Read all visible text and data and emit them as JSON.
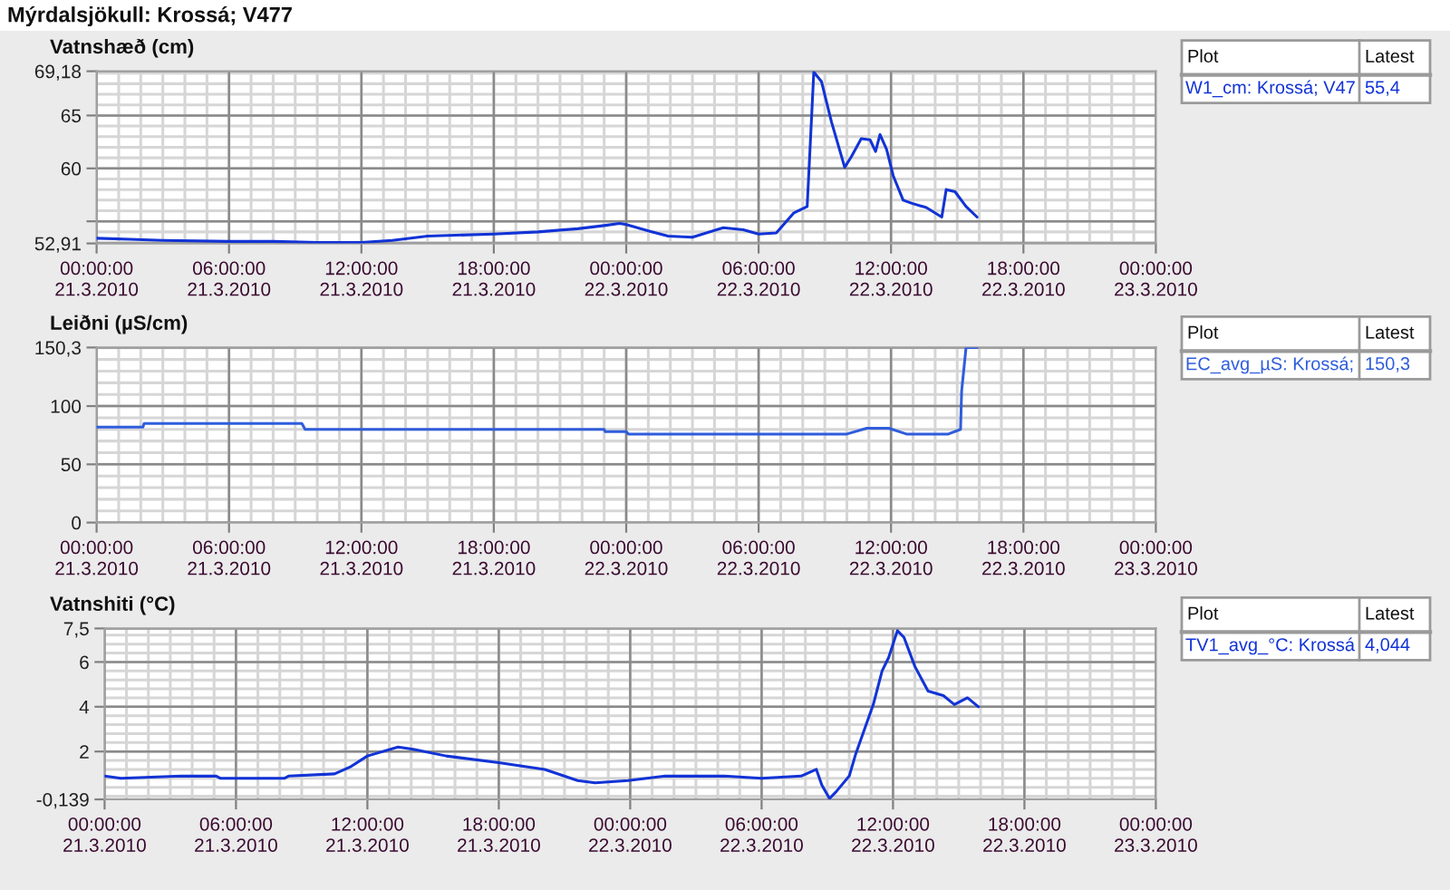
{
  "chart_data": [
    {
      "type": "line",
      "title": "Mýrdalsjökull: Krossá; V477",
      "ylabel": "Vatnshæð (cm)",
      "legend": "right",
      "legend_title": "Plot",
      "annotations": [
        "Latest",
        "55,4"
      ],
      "grid": true,
      "x": [
        "2010-03-21T00:00",
        "2010-03-21T01:30",
        "2010-03-21T03:00",
        "2010-03-21T06:00",
        "2010-03-21T08:00",
        "2010-03-21T10:00",
        "2010-03-21T12:00",
        "2010-03-21T13:24",
        "2010-03-21T15:00",
        "2010-03-21T18:00",
        "2010-03-21T20:00",
        "2010-03-21T21:48",
        "2010-03-21T23:00",
        "2010-03-21T23:42",
        "2010-03-22T00:00",
        "2010-03-22T01:00",
        "2010-03-22T01:54",
        "2010-03-22T03:00",
        "2010-03-22T04:24",
        "2010-03-22T05:18",
        "2010-03-22T06:00",
        "2010-03-22T06:48",
        "2010-03-22T07:36",
        "2010-03-22T08:12",
        "2010-03-22T08:21",
        "2010-03-22T08:30",
        "2010-03-22T08:51",
        "2010-03-22T09:18",
        "2010-03-22T09:54",
        "2010-03-22T10:12",
        "2010-03-22T10:39",
        "2010-03-22T11:03",
        "2010-03-22T11:18",
        "2010-03-22T11:30",
        "2010-03-22T11:48",
        "2010-03-22T12:06",
        "2010-03-22T12:33",
        "2010-03-22T12:57",
        "2010-03-22T13:36",
        "2010-03-22T14:18",
        "2010-03-22T14:30",
        "2010-03-22T14:54",
        "2010-03-22T15:24",
        "2010-03-22T15:54"
      ],
      "series": [
        {
          "name": "W1_cm: Krossá; V47",
          "color": "#1233d6",
          "values": [
            53.4,
            53.3,
            53.2,
            53.1,
            53.1,
            53.0,
            53.0,
            53.2,
            53.6,
            53.8,
            54.0,
            54.3,
            54.6,
            54.8,
            54.7,
            54.1,
            53.6,
            53.5,
            54.4,
            54.2,
            53.8,
            53.9,
            55.8,
            56.4,
            62.7,
            69.1,
            68.2,
            64.4,
            60.1,
            61.1,
            62.8,
            62.7,
            61.6,
            63.2,
            61.8,
            59.3,
            57.0,
            56.7,
            56.3,
            55.4,
            58.0,
            57.8,
            56.4,
            55.4
          ]
        }
      ],
      "xlim": [
        "2010-03-21T00:00",
        "2010-03-23T00:00"
      ],
      "xticks": [
        {
          "value": "2010-03-21T00:00",
          "label": "00:00:00\n21.3.2010"
        },
        {
          "value": "2010-03-21T06:00",
          "label": "06:00:00\n21.3.2010"
        },
        {
          "value": "2010-03-21T12:00",
          "label": "12:00:00\n21.3.2010"
        },
        {
          "value": "2010-03-21T18:00",
          "label": "18:00:00\n21.3.2010"
        },
        {
          "value": "2010-03-22T00:00",
          "label": "00:00:00\n22.3.2010"
        },
        {
          "value": "2010-03-22T06:00",
          "label": "06:00:00\n22.3.2010"
        },
        {
          "value": "2010-03-22T12:00",
          "label": "12:00:00\n22.3.2010"
        },
        {
          "value": "2010-03-22T18:00",
          "label": "18:00:00\n22.3.2010"
        },
        {
          "value": "2010-03-23T00:00",
          "label": "00:00:00\n23.3.2010"
        }
      ],
      "ylim": [
        52.91,
        69.18
      ],
      "yticks": [
        {
          "value": 52.91,
          "label": "52,91"
        },
        {
          "value": 55,
          "label": null
        },
        60,
        65,
        {
          "value": 69.18,
          "label": "69,18"
        }
      ]
    },
    {
      "type": "line",
      "ylabel": "Leiðni (µS/cm)",
      "legend": "right",
      "legend_title": "Plot",
      "annotations": [
        "Latest",
        "150,3"
      ],
      "grid": true,
      "x": [
        "2010-03-21T00:00",
        "2010-03-21T02:06",
        "2010-03-21T02:09",
        "2010-03-21T09:18",
        "2010-03-21T09:27",
        "2010-03-21T23:00",
        "2010-03-21T23:03",
        "2010-03-22T00:00",
        "2010-03-22T00:06",
        "2010-03-22T10:00",
        "2010-03-22T10:54",
        "2010-03-22T11:54",
        "2010-03-22T12:42",
        "2010-03-22T14:36",
        "2010-03-22T15:09",
        "2010-03-22T15:12",
        "2010-03-22T15:24",
        "2010-03-22T15:54"
      ],
      "series": [
        {
          "name": "EC_avg_µS: Krossá;",
          "color": "#2f5ddc",
          "values": [
            82,
            82,
            85,
            85,
            80,
            80,
            78,
            78,
            76,
            76,
            81,
            81,
            76,
            76,
            80,
            113,
            150.3,
            150.3
          ]
        }
      ],
      "xlim": [
        "2010-03-21T00:00",
        "2010-03-23T00:00"
      ],
      "xticks": [
        {
          "value": "2010-03-21T00:00",
          "label": "00:00:00\n21.3.2010"
        },
        {
          "value": "2010-03-21T06:00",
          "label": "06:00:00\n21.3.2010"
        },
        {
          "value": "2010-03-21T12:00",
          "label": "12:00:00\n21.3.2010"
        },
        {
          "value": "2010-03-21T18:00",
          "label": "18:00:00\n21.3.2010"
        },
        {
          "value": "2010-03-22T00:00",
          "label": "00:00:00\n22.3.2010"
        },
        {
          "value": "2010-03-22T06:00",
          "label": "06:00:00\n22.3.2010"
        },
        {
          "value": "2010-03-22T12:00",
          "label": "12:00:00\n22.3.2010"
        },
        {
          "value": "2010-03-22T18:00",
          "label": "18:00:00\n22.3.2010"
        },
        {
          "value": "2010-03-23T00:00",
          "label": "00:00:00\n23.3.2010"
        }
      ],
      "ylim": [
        0,
        150.3
      ],
      "yticks": [
        0,
        50,
        100,
        {
          "value": 150.3,
          "label": "150,3"
        }
      ]
    },
    {
      "type": "line",
      "ylabel": "Vatnshiti (°C)",
      "legend": "right",
      "legend_title": "Plot",
      "annotations": [
        "Latest",
        "4,044"
      ],
      "grid": true,
      "x": [
        "2010-03-21T00:00",
        "2010-03-21T00:45",
        "2010-03-21T03:30",
        "2010-03-21T05:06",
        "2010-03-21T05:18",
        "2010-03-21T08:12",
        "2010-03-21T08:24",
        "2010-03-21T10:30",
        "2010-03-21T11:12",
        "2010-03-21T12:00",
        "2010-03-21T13:24",
        "2010-03-21T14:06",
        "2010-03-21T15:36",
        "2010-03-21T18:00",
        "2010-03-21T20:06",
        "2010-03-21T21:36",
        "2010-03-21T22:24",
        "2010-03-21T23:54",
        "2010-03-22T01:36",
        "2010-03-22T03:00",
        "2010-03-22T04:18",
        "2010-03-22T06:00",
        "2010-03-22T07:48",
        "2010-03-22T08:30",
        "2010-03-22T08:45",
        "2010-03-22T09:06",
        "2010-03-22T09:24",
        "2010-03-22T10:00",
        "2010-03-22T10:18",
        "2010-03-22T10:42",
        "2010-03-22T11:06",
        "2010-03-22T11:30",
        "2010-03-22T11:48",
        "2010-03-22T12:12",
        "2010-03-22T12:30",
        "2010-03-22T13:00",
        "2010-03-22T13:36",
        "2010-03-22T14:18",
        "2010-03-22T14:48",
        "2010-03-22T15:24",
        "2010-03-22T15:54"
      ],
      "series": [
        {
          "name": "TV1_avg_°C: Krossá",
          "color": "#1233d6",
          "values": [
            0.9,
            0.8,
            0.9,
            0.9,
            0.8,
            0.8,
            0.9,
            1.0,
            1.3,
            1.8,
            2.2,
            2.1,
            1.8,
            1.5,
            1.2,
            0.7,
            0.6,
            0.7,
            0.9,
            0.9,
            0.9,
            0.8,
            0.9,
            1.2,
            0.5,
            -0.1,
            0.2,
            0.9,
            1.9,
            3.0,
            4.1,
            5.6,
            6.2,
            7.4,
            7.1,
            5.8,
            4.7,
            4.5,
            4.1,
            4.4,
            4.0
          ]
        }
      ],
      "xlim": [
        "2010-03-21T00:00",
        "2010-03-23T00:00"
      ],
      "xticks": [
        {
          "value": "2010-03-21T00:00",
          "label": "00:00:00\n21.3.2010"
        },
        {
          "value": "2010-03-21T06:00",
          "label": "06:00:00\n21.3.2010"
        },
        {
          "value": "2010-03-21T12:00",
          "label": "12:00:00\n21.3.2010"
        },
        {
          "value": "2010-03-21T18:00",
          "label": "18:00:00\n21.3.2010"
        },
        {
          "value": "2010-03-22T00:00",
          "label": "00:00:00\n22.3.2010"
        },
        {
          "value": "2010-03-22T06:00",
          "label": "06:00:00\n22.3.2010"
        },
        {
          "value": "2010-03-22T12:00",
          "label": "12:00:00\n22.3.2010"
        },
        {
          "value": "2010-03-22T18:00",
          "label": "18:00:00\n22.3.2010"
        },
        {
          "value": "2010-03-23T00:00",
          "label": "00:00:00\n23.3.2010"
        }
      ],
      "ylim": [
        -0.139,
        7.5
      ],
      "yticks": [
        {
          "value": -0.139,
          "label": "-0,139"
        },
        2,
        4,
        6,
        {
          "value": 7.5,
          "label": "7,5"
        }
      ]
    }
  ]
}
